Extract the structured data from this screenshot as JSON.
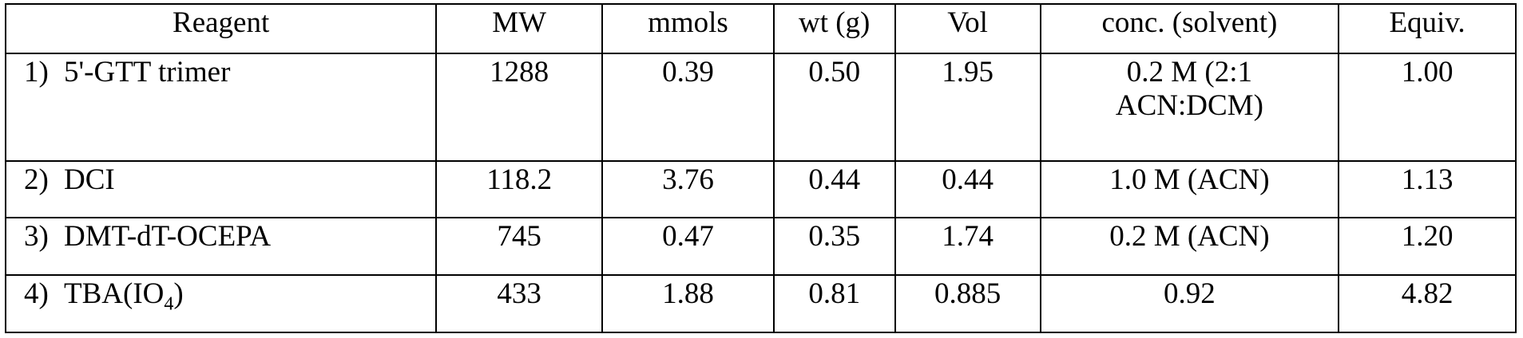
{
  "table": {
    "header": [
      "Reagent",
      "MW",
      "mmols",
      "wt (g)",
      "Vol",
      "conc. (solvent)",
      "Equiv."
    ],
    "rows": [
      {
        "number": "1)",
        "reagent": "5'-GTT trimer",
        "cells": [
          "1288",
          "0.39",
          "0.50",
          "1.95",
          [
            "0.2 M (2:1",
            "ACN:DCM)"
          ],
          "1.00"
        ]
      },
      {
        "number": "2)",
        "reagent": "DCI",
        "cells": [
          "118.2",
          "3.76",
          "0.44",
          "0.44",
          "1.0 M (ACN)",
          "1.13"
        ]
      },
      {
        "number": "3)",
        "reagent": "DMT-dT-OCEPA",
        "cells": [
          "745",
          "0.47",
          "0.35",
          "1.74",
          "0.2 M (ACN)",
          "1.20"
        ]
      },
      {
        "number": "4)",
        "reagent": "TBA(IO",
        "reagent_sub": "4",
        "reagent_tail": ")",
        "cells": [
          "433",
          "1.88",
          "0.81",
          "0.885",
          "0.92",
          "4.82"
        ]
      }
    ]
  }
}
